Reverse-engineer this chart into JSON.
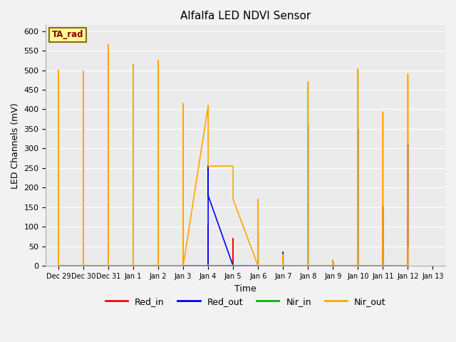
{
  "title": "Alfalfa LED NDVI Sensor",
  "ylabel": "LED Channels (mV)",
  "xlabel": "Time",
  "annotation": "TA_rad",
  "annotation_color": "#8B0000",
  "annotation_bg": "#FFFF99",
  "annotation_border": "#8B6914",
  "plot_bg": "#ebebeb",
  "fig_bg": "#f2f2f2",
  "grid_color": "#ffffff",
  "ylim": [
    0,
    615
  ],
  "yticks": [
    0,
    50,
    100,
    150,
    200,
    250,
    300,
    350,
    400,
    450,
    500,
    550,
    600
  ],
  "x_labels": [
    "Dec 29",
    "Dec 30",
    "Dec 31",
    "Jan 1",
    "Jan 2",
    "Jan 3",
    "Jan 4",
    "Jan 5",
    "Jan 6",
    "Jan 7",
    "Jan 8",
    "Jan 9",
    "Jan 10",
    "Jan 11",
    "Jan 12",
    "Jan 13"
  ],
  "series": {
    "Red_in": {
      "color": "#FF0000",
      "x": [
        0,
        0,
        0,
        1,
        1,
        1,
        2,
        2,
        2,
        3,
        3,
        3,
        4,
        4,
        4,
        5,
        5,
        5,
        6,
        6,
        6,
        7,
        7,
        7,
        8,
        8,
        8,
        9,
        9,
        9,
        10,
        10,
        10,
        11,
        11,
        11,
        12,
        12,
        12,
        13,
        13,
        13,
        14,
        14,
        14
      ],
      "y": [
        0,
        145,
        0,
        0,
        120,
        0,
        0,
        155,
        0,
        0,
        115,
        0,
        0,
        100,
        0,
        0,
        120,
        0,
        0,
        105,
        0,
        0,
        70,
        0,
        0,
        57,
        0,
        0,
        10,
        0,
        0,
        157,
        0,
        0,
        5,
        0,
        0,
        145,
        0,
        0,
        95,
        0,
        0,
        138,
        0
      ]
    },
    "Red_out": {
      "color": "#0000FF",
      "x": [
        0,
        0,
        0,
        1,
        1,
        1,
        2,
        2,
        2,
        3,
        3,
        3,
        4,
        4,
        4,
        5,
        5,
        5,
        6,
        6,
        6,
        7,
        7,
        7,
        8,
        8,
        8,
        9,
        9,
        9,
        10,
        10,
        10,
        11,
        11,
        11,
        12,
        12,
        12,
        13,
        13,
        13,
        14,
        14,
        14
      ],
      "y": [
        0,
        330,
        0,
        0,
        290,
        0,
        0,
        265,
        0,
        0,
        305,
        0,
        0,
        318,
        0,
        0,
        300,
        0,
        0,
        258,
        180,
        0,
        0,
        0,
        0,
        80,
        0,
        0,
        35,
        0,
        0,
        360,
        0,
        0,
        10,
        0,
        0,
        350,
        0,
        0,
        152,
        0,
        0,
        310,
        50
      ]
    },
    "Nir_in": {
      "color": "#00BB00",
      "x": [
        0,
        0,
        0,
        1,
        1,
        1,
        2,
        2,
        2,
        3,
        3,
        3,
        4,
        4,
        4,
        5,
        5,
        5,
        6,
        6,
        6,
        7,
        7,
        7,
        8,
        8,
        8,
        9,
        9,
        9,
        10,
        10,
        10,
        11,
        11,
        11,
        12,
        12,
        12,
        13,
        13,
        13,
        14,
        14,
        14
      ],
      "y": [
        0,
        2,
        0,
        0,
        2,
        0,
        0,
        2,
        0,
        0,
        2,
        0,
        0,
        2,
        0,
        0,
        2,
        0,
        0,
        2,
        0,
        0,
        2,
        0,
        0,
        2,
        0,
        0,
        2,
        0,
        0,
        2,
        0,
        0,
        2,
        0,
        0,
        2,
        0,
        0,
        2,
        0,
        0,
        2,
        0
      ]
    },
    "Nir_out": {
      "color": "#FFA500",
      "x": [
        0,
        0,
        0,
        1,
        1,
        1,
        2,
        2,
        2,
        3,
        3,
        3,
        4,
        4,
        4,
        5,
        5,
        5,
        6,
        6,
        7,
        7,
        8,
        8,
        8,
        9,
        9,
        9,
        10,
        10,
        10,
        11,
        11,
        11,
        12,
        12,
        12,
        13,
        13,
        13,
        14,
        14,
        14
      ],
      "y": [
        0,
        500,
        0,
        0,
        497,
        0,
        0,
        565,
        0,
        0,
        515,
        0,
        0,
        525,
        0,
        0,
        415,
        0,
        410,
        255,
        255,
        170,
        0,
        170,
        0,
        0,
        30,
        0,
        0,
        470,
        0,
        0,
        15,
        0,
        0,
        503,
        0,
        0,
        393,
        0,
        0,
        490,
        0
      ]
    }
  },
  "legend": [
    "Red_in",
    "Red_out",
    "Nir_in",
    "Nir_out"
  ],
  "legend_colors": [
    "#FF0000",
    "#0000FF",
    "#00BB00",
    "#FFA500"
  ],
  "linewidth": 1.2
}
